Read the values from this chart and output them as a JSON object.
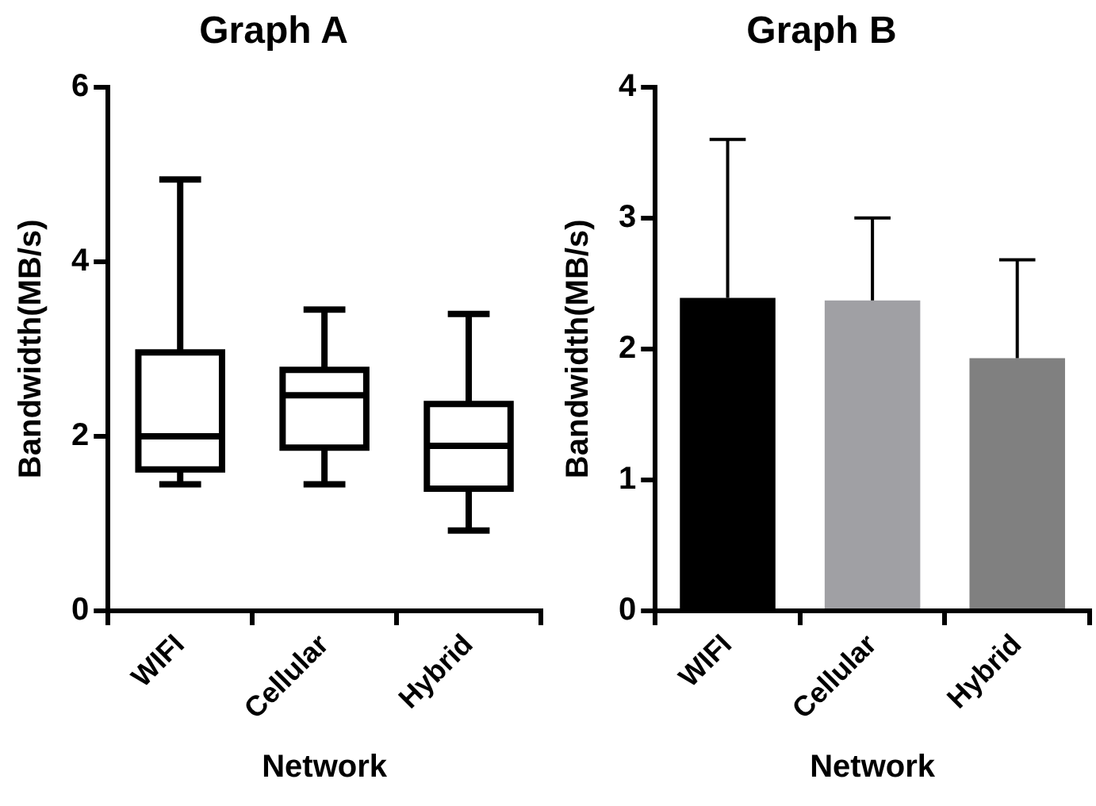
{
  "chart_data": [
    {
      "type": "box",
      "title": "Graph A",
      "xlabel": "Network",
      "ylabel": "Bandwidth(MB/s)",
      "categories": [
        "WIFI",
        "Cellular",
        "Hybrid"
      ],
      "boxes": [
        {
          "low": 1.45,
          "q1": 1.62,
          "median": 2.0,
          "q3": 2.96,
          "high": 4.94
        },
        {
          "low": 1.45,
          "q1": 1.87,
          "median": 2.47,
          "q3": 2.76,
          "high": 3.45
        },
        {
          "low": 0.92,
          "q1": 1.4,
          "median": 1.89,
          "q3": 2.37,
          "high": 3.4
        }
      ],
      "ylim": [
        0,
        6
      ],
      "yticks": [
        0,
        2,
        4,
        6
      ],
      "grid": false,
      "legend": false
    },
    {
      "type": "bar",
      "title": "Graph B",
      "xlabel": "Network",
      "ylabel": "Bandwidth(MB/s)",
      "categories": [
        "WIFI",
        "Cellular",
        "Hybrid"
      ],
      "values": [
        2.39,
        2.37,
        1.93
      ],
      "colors": [
        "#000000",
        "#a0a0a4",
        "#808080"
      ],
      "errors": [
        [
          2.39,
          3.6
        ],
        [
          2.37,
          3.0
        ],
        [
          1.93,
          2.68
        ]
      ],
      "ylim": [
        0,
        4
      ],
      "yticks": [
        0,
        1,
        2,
        3,
        4
      ],
      "grid": false,
      "legend": false
    }
  ]
}
